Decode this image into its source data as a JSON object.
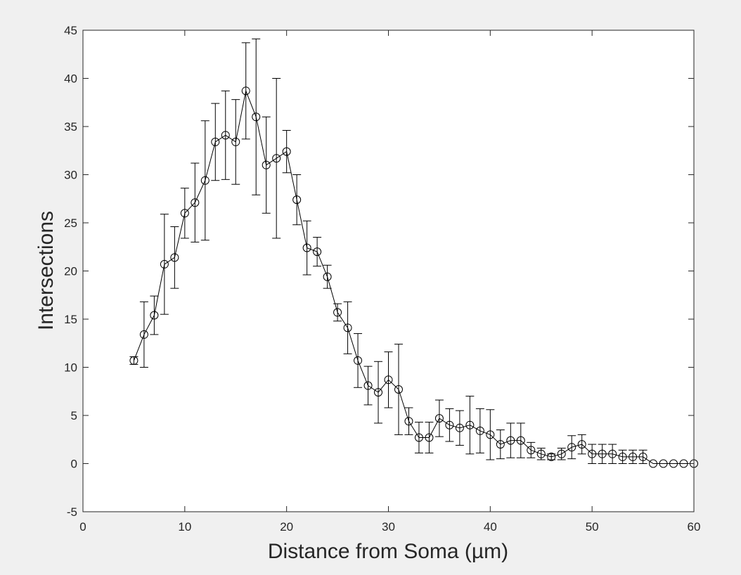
{
  "chart_data": {
    "type": "line",
    "title": "",
    "xlabel": "Distance from Soma (µm)",
    "ylabel": "Intersections",
    "xlim": [
      0,
      60
    ],
    "ylim": [
      -5,
      45
    ],
    "xticks": [
      0,
      10,
      20,
      30,
      40,
      50,
      60
    ],
    "yticks": [
      -5,
      0,
      5,
      10,
      15,
      20,
      25,
      30,
      35,
      40,
      45
    ],
    "grid": false,
    "legend": "none",
    "marker": "circle",
    "line_color": "#000000",
    "series": [
      {
        "x": [
          5,
          6,
          7,
          8,
          9,
          10,
          11,
          12,
          13,
          14,
          15,
          16,
          17,
          18,
          19,
          20,
          21,
          22,
          23,
          24,
          25,
          26,
          27,
          28,
          29,
          30,
          31,
          32,
          33,
          34,
          35,
          36,
          37,
          38,
          39,
          40,
          41,
          42,
          43,
          44,
          45,
          46,
          47,
          48,
          49,
          50,
          51,
          52,
          53,
          54,
          55,
          56,
          57,
          58,
          59,
          60
        ],
        "y": [
          10.7,
          13.4,
          15.4,
          20.7,
          21.4,
          26.0,
          27.1,
          29.4,
          33.4,
          34.1,
          33.4,
          38.7,
          36.0,
          31.0,
          31.7,
          32.4,
          27.4,
          22.4,
          22.0,
          19.4,
          15.7,
          14.1,
          10.7,
          8.1,
          7.4,
          8.7,
          7.7,
          4.4,
          2.7,
          2.7,
          4.7,
          4.0,
          3.7,
          4.0,
          3.4,
          3.0,
          2.0,
          2.4,
          2.4,
          1.4,
          1.0,
          0.7,
          1.0,
          1.7,
          2.0,
          1.0,
          1.0,
          1.0,
          0.7,
          0.7,
          0.7,
          0.0,
          0.0,
          0.0,
          0.0,
          0.0
        ],
        "error": [
          0.4,
          3.4,
          2.0,
          5.2,
          3.2,
          2.6,
          4.1,
          6.2,
          4.0,
          4.6,
          4.4,
          5.0,
          8.1,
          5.0,
          8.3,
          2.2,
          2.6,
          2.8,
          1.5,
          1.2,
          0.9,
          2.7,
          2.8,
          2.0,
          3.2,
          2.9,
          4.7,
          1.4,
          1.6,
          1.6,
          1.9,
          1.7,
          1.8,
          3.0,
          2.3,
          2.6,
          1.5,
          1.8,
          1.8,
          0.8,
          0.6,
          0.3,
          0.6,
          1.2,
          1.0,
          1.0,
          1.0,
          1.0,
          0.7,
          0.7,
          0.7,
          0.0,
          0.0,
          0.0,
          0.0,
          0.0
        ]
      }
    ]
  }
}
